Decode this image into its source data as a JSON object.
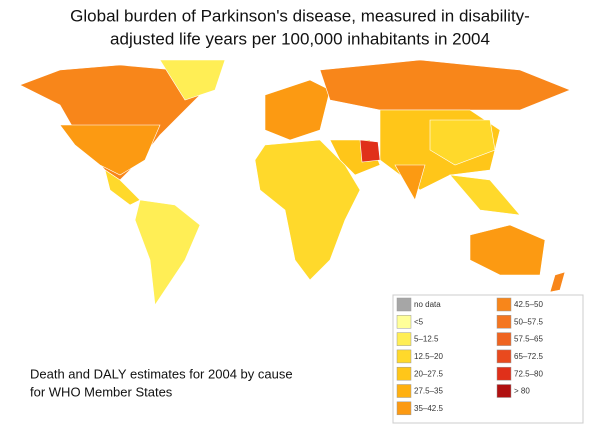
{
  "title": [
    "Global burden of Parkinson's disease, measured in disability-",
    "adjusted life years per 100,000 inhabitants in 2004"
  ],
  "caption": [
    "Death and DALY estimates for 2004 by cause",
    "for WHO Member States"
  ],
  "legend": [
    {
      "label": "no data",
      "color": "#a6a6a6"
    },
    {
      "label": "<5",
      "color": "#ffff99"
    },
    {
      "label": "5–12.5",
      "color": "#ffee55"
    },
    {
      "label": "12.5–20",
      "color": "#ffd92b"
    },
    {
      "label": "20–27.5",
      "color": "#ffc619"
    },
    {
      "label": "27.5–35",
      "color": "#ffb010"
    },
    {
      "label": "35–42.5",
      "color": "#fc9a12"
    },
    {
      "label": "42.5–50",
      "color": "#f8861a"
    },
    {
      "label": "50–57.5",
      "color": "#f47620"
    },
    {
      "label": "57.5–65",
      "color": "#ef6420"
    },
    {
      "label": "65–72.5",
      "color": "#e94a1e"
    },
    {
      "label": "72.5–80",
      "color": "#e0301a"
    },
    {
      "label": "> 80",
      "color": "#b01010"
    }
  ]
}
